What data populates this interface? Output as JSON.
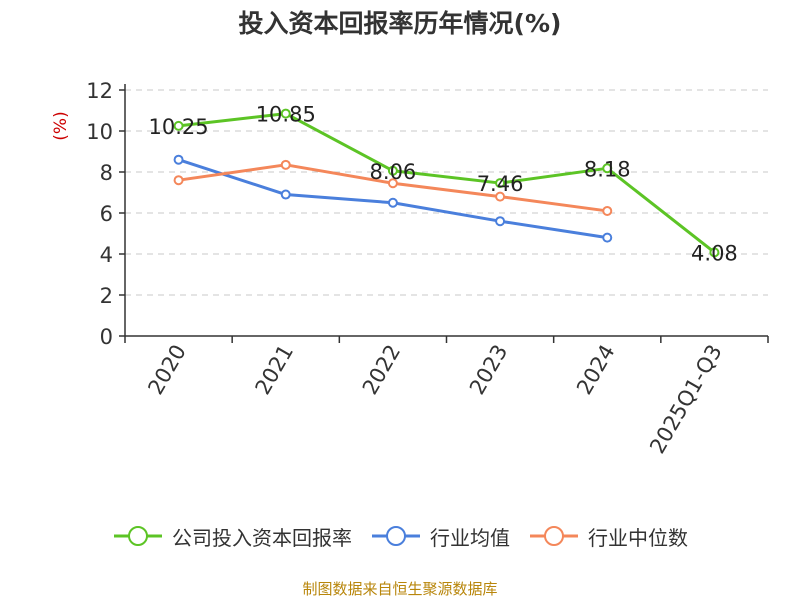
{
  "chart_data": {
    "type": "line",
    "title": "投入资本回报率历年情况(%)",
    "ylabel": "(%)",
    "categories": [
      "2020",
      "2021",
      "2022",
      "2023",
      "2024",
      "2025Q1-Q3"
    ],
    "ylim": [
      0,
      12
    ],
    "yticks": [
      0,
      2,
      4,
      6,
      8,
      10,
      12
    ],
    "grid": true,
    "legend_position": "bottom",
    "series": [
      {
        "name": "公司投入资本回报率",
        "color": "#5cc425",
        "values": [
          10.25,
          10.85,
          8.06,
          7.46,
          8.18,
          4.08
        ],
        "labels": [
          "10.25",
          "10.85",
          "8.06",
          "7.46",
          "8.18",
          "4.08"
        ]
      },
      {
        "name": "行业均值",
        "color": "#4a7fdc",
        "values": [
          8.6,
          6.9,
          6.5,
          5.6,
          4.8,
          null
        ]
      },
      {
        "name": "行业中位数",
        "color": "#f4875a",
        "values": [
          7.6,
          8.35,
          7.45,
          6.8,
          6.1,
          null
        ]
      }
    ]
  },
  "source": "制图数据来自恒生聚源数据库"
}
